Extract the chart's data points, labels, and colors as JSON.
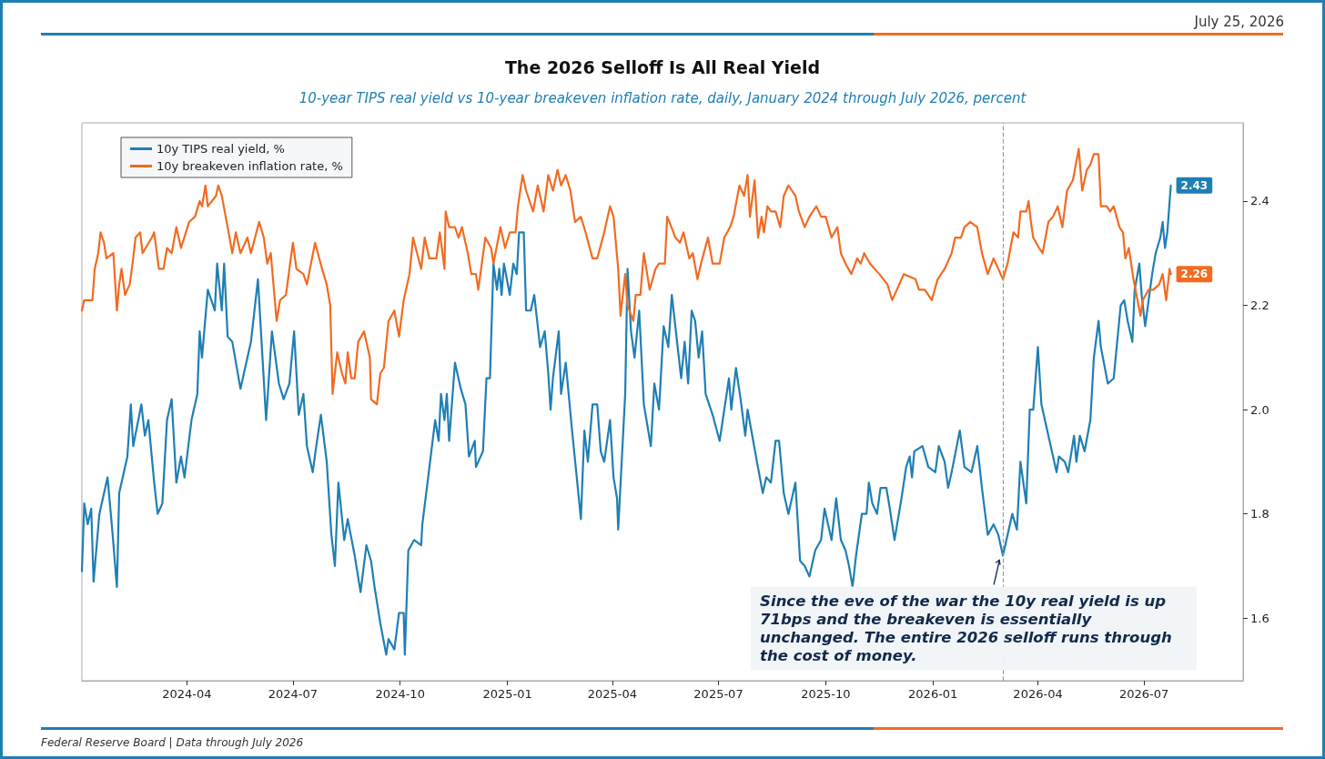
{
  "chart_data": {
    "type": "line",
    "title": "The 2026 Selloff Is All Real Yield",
    "subtitle": "10-year TIPS real yield vs 10-year breakeven inflation rate, daily, January 2024 through July 2026, percent",
    "series": [
      {
        "name": "10y TIPS real yield, %",
        "color": "#1f7fb4",
        "x": [
          "2024-01-02",
          "2024-01-04",
          "2024-01-07",
          "2024-01-10",
          "2024-01-12",
          "2024-01-17",
          "2024-01-24",
          "2024-01-28",
          "2024-02-01",
          "2024-02-03",
          "2024-02-10",
          "2024-02-13",
          "2024-02-15",
          "2024-02-22",
          "2024-02-25",
          "2024-02-28",
          "2024-03-04",
          "2024-03-07",
          "2024-03-11",
          "2024-03-15",
          "2024-03-19",
          "2024-03-23",
          "2024-03-27",
          "2024-03-30",
          "2024-04-05",
          "2024-04-10",
          "2024-04-12",
          "2024-04-14",
          "2024-04-19",
          "2024-04-25",
          "2024-04-27",
          "2024-05-01",
          "2024-05-03",
          "2024-05-06",
          "2024-05-10",
          "2024-05-17",
          "2024-05-23",
          "2024-05-26",
          "2024-06-01",
          "2024-06-08",
          "2024-06-13",
          "2024-06-19",
          "2024-06-23",
          "2024-06-28",
          "2024-07-02",
          "2024-07-06",
          "2024-07-10",
          "2024-07-13",
          "2024-07-18",
          "2024-07-21",
          "2024-07-25",
          "2024-07-30",
          "2024-08-03",
          "2024-08-06",
          "2024-08-09",
          "2024-08-14",
          "2024-08-17",
          "2024-08-23",
          "2024-08-28",
          "2024-09-02",
          "2024-09-06",
          "2024-09-09",
          "2024-09-14",
          "2024-09-19",
          "2024-09-21",
          "2024-09-26",
          "2024-09-30",
          "2024-10-04",
          "2024-10-05",
          "2024-10-08",
          "2024-10-13",
          "2024-10-19",
          "2024-10-20",
          "2024-10-25",
          "2024-10-31",
          "2024-11-03",
          "2024-11-05",
          "2024-11-08",
          "2024-11-10",
          "2024-11-12",
          "2024-11-17",
          "2024-11-22",
          "2024-11-26",
          "2024-11-29",
          "2024-12-04",
          "2024-12-05",
          "2024-12-11",
          "2024-12-14",
          "2024-12-17",
          "2024-12-20",
          "2024-12-23",
          "2024-12-25",
          "2024-12-27",
          "2024-12-29",
          "2025-01-03",
          "2025-01-06",
          "2025-01-09",
          "2025-01-11",
          "2025-01-15",
          "2025-01-17",
          "2025-01-21",
          "2025-01-24",
          "2025-01-29",
          "2025-02-02",
          "2025-02-05",
          "2025-02-07",
          "2025-02-09",
          "2025-02-14",
          "2025-02-16",
          "2025-02-20",
          "2025-02-25",
          "2025-03-01",
          "2025-03-05",
          "2025-03-08",
          "2025-03-11",
          "2025-03-15",
          "2025-03-19",
          "2025-03-22",
          "2025-03-25",
          "2025-03-30",
          "2025-04-02",
          "2025-04-05",
          "2025-04-06",
          "2025-04-12",
          "2025-04-14",
          "2025-04-17",
          "2025-04-20",
          "2025-04-24",
          "2025-04-28",
          "2025-05-04",
          "2025-05-07",
          "2025-05-11",
          "2025-05-15",
          "2025-05-19",
          "2025-05-22",
          "2025-05-26",
          "2025-05-30",
          "2025-06-02",
          "2025-06-05",
          "2025-06-08",
          "2025-06-11",
          "2025-06-14",
          "2025-06-17",
          "2025-06-20",
          "2025-06-26",
          "2025-07-02",
          "2025-07-10",
          "2025-07-12",
          "2025-07-16",
          "2025-07-20",
          "2025-07-24",
          "2025-07-26",
          "2025-07-30",
          "2025-08-03",
          "2025-08-08",
          "2025-08-11",
          "2025-08-15",
          "2025-08-19",
          "2025-08-22",
          "2025-08-26",
          "2025-08-30",
          "2025-09-05",
          "2025-09-09",
          "2025-09-13",
          "2025-09-17",
          "2025-09-22",
          "2025-09-27",
          "2025-09-30",
          "2025-10-03",
          "2025-10-06",
          "2025-10-10",
          "2025-10-14",
          "2025-10-18",
          "2025-10-21",
          "2025-10-24",
          "2025-10-27",
          "2025-11-01",
          "2025-11-05",
          "2025-11-07",
          "2025-11-10",
          "2025-11-14",
          "2025-11-17",
          "2025-11-22",
          "2025-11-25",
          "2025-11-29",
          "2025-12-05",
          "2025-12-09",
          "2025-12-12",
          "2025-12-14",
          "2025-12-16",
          "2025-12-23",
          "2025-12-28",
          "2026-01-03",
          "2026-01-06",
          "2026-01-11",
          "2026-01-14",
          "2026-01-17",
          "2026-01-24",
          "2026-01-28",
          "2026-02-03",
          "2026-02-08",
          "2026-02-12",
          "2026-02-17",
          "2026-02-22",
          "2026-02-26",
          "2026-03-02",
          "2026-03-10",
          "2026-03-14",
          "2026-03-17",
          "2026-03-22",
          "2026-03-25",
          "2026-03-28",
          "2026-04-01",
          "2026-04-04",
          "2026-04-07",
          "2026-04-11",
          "2026-04-17",
          "2026-04-19",
          "2026-04-24",
          "2026-04-27",
          "2026-05-02",
          "2026-05-04",
          "2026-05-07",
          "2026-05-11",
          "2026-05-16",
          "2026-05-19",
          "2026-05-23",
          "2026-05-25",
          "2026-05-31",
          "2026-06-05",
          "2026-06-08",
          "2026-06-11",
          "2026-06-14",
          "2026-06-17",
          "2026-06-21",
          "2026-06-23",
          "2026-06-27",
          "2026-06-29",
          "2026-07-02",
          "2026-07-08",
          "2026-07-11",
          "2026-07-15",
          "2026-07-17",
          "2026-07-19",
          "2026-07-21",
          "2026-07-24"
        ],
        "values": [
          1.69,
          1.82,
          1.78,
          1.81,
          1.67,
          1.8,
          1.87,
          1.77,
          1.66,
          1.84,
          1.91,
          2.01,
          1.93,
          2.01,
          1.95,
          1.98,
          1.86,
          1.8,
          1.82,
          1.98,
          2.02,
          1.86,
          1.91,
          1.87,
          1.98,
          2.03,
          2.15,
          2.1,
          2.23,
          2.19,
          2.28,
          2.19,
          2.28,
          2.14,
          2.13,
          2.04,
          2.1,
          2.13,
          2.25,
          1.98,
          2.15,
          2.05,
          2.02,
          2.05,
          2.15,
          1.99,
          2.03,
          1.93,
          1.88,
          1.93,
          1.99,
          1.9,
          1.76,
          1.7,
          1.86,
          1.75,
          1.79,
          1.72,
          1.65,
          1.74,
          1.71,
          1.66,
          1.59,
          1.53,
          1.56,
          1.54,
          1.61,
          1.61,
          1.53,
          1.73,
          1.75,
          1.74,
          1.78,
          1.87,
          1.98,
          1.94,
          2.03,
          1.98,
          2.03,
          1.94,
          2.09,
          2.04,
          2.01,
          1.91,
          1.94,
          1.89,
          1.92,
          2.06,
          2.06,
          2.28,
          2.23,
          2.27,
          2.22,
          2.28,
          2.22,
          2.28,
          2.26,
          2.34,
          2.34,
          2.19,
          2.19,
          2.22,
          2.12,
          2.15,
          2.07,
          2.0,
          2.06,
          2.15,
          2.03,
          2.09,
          1.97,
          1.88,
          1.79,
          1.96,
          1.9,
          2.01,
          2.01,
          1.92,
          1.9,
          1.98,
          1.87,
          1.83,
          1.77,
          2.03,
          2.27,
          2.15,
          2.1,
          2.19,
          2.01,
          1.93,
          2.05,
          2.0,
          2.16,
          2.12,
          2.22,
          2.14,
          2.06,
          2.13,
          2.05,
          2.19,
          2.17,
          2.1,
          2.15,
          2.03,
          1.99,
          1.94,
          2.06,
          2.0,
          2.08,
          2.02,
          1.95,
          2.0,
          1.95,
          1.9,
          1.84,
          1.87,
          1.86,
          1.94,
          1.94,
          1.84,
          1.8,
          1.86,
          1.71,
          1.7,
          1.68,
          1.73,
          1.75,
          1.81,
          1.78,
          1.75,
          1.83,
          1.75,
          1.73,
          1.7,
          1.66,
          1.72,
          1.8,
          1.8,
          1.86,
          1.82,
          1.8,
          1.85,
          1.85,
          1.81,
          1.75,
          1.83,
          1.89,
          1.91,
          1.87,
          1.92,
          1.93,
          1.89,
          1.88,
          1.93,
          1.9,
          1.85,
          1.88,
          1.96,
          1.89,
          1.88,
          1.93,
          1.85,
          1.76,
          1.78,
          1.76,
          1.72,
          1.8,
          1.77,
          1.9,
          1.82,
          2.0,
          2.0,
          2.12,
          2.01,
          1.98,
          1.94,
          1.88,
          1.91,
          1.9,
          1.88,
          1.95,
          1.9,
          1.95,
          1.92,
          1.98,
          2.1,
          2.17,
          2.12,
          2.05,
          2.06,
          2.13,
          2.2,
          2.21,
          2.17,
          2.13,
          2.23,
          2.28,
          2.22,
          2.16,
          2.26,
          2.3,
          2.33,
          2.36,
          2.31,
          2.34,
          2.43
        ]
      },
      {
        "name": "10y breakeven inflation rate, %",
        "color": "#f26b21",
        "x": [
          "2024-01-02",
          "2024-01-04",
          "2024-01-11",
          "2024-01-13",
          "2024-01-16",
          "2024-01-18",
          "2024-01-21",
          "2024-01-23",
          "2024-01-29",
          "2024-02-01",
          "2024-02-03",
          "2024-02-05",
          "2024-02-08",
          "2024-02-12",
          "2024-02-15",
          "2024-02-17",
          "2024-02-21",
          "2024-02-23",
          "2024-03-02",
          "2024-03-04",
          "2024-03-08",
          "2024-03-12",
          "2024-03-15",
          "2024-03-19",
          "2024-03-23",
          "2024-03-27",
          "2024-04-03",
          "2024-04-08",
          "2024-04-12",
          "2024-04-14",
          "2024-04-17",
          "2024-04-19",
          "2024-04-26",
          "2024-04-28",
          "2024-05-01",
          "2024-05-06",
          "2024-05-10",
          "2024-05-13",
          "2024-05-17",
          "2024-05-23",
          "2024-05-26",
          "2024-06-02",
          "2024-06-06",
          "2024-06-09",
          "2024-06-12",
          "2024-06-17",
          "2024-06-20",
          "2024-06-25",
          "2024-07-01",
          "2024-07-04",
          "2024-07-10",
          "2024-07-13",
          "2024-07-20",
          "2024-07-26",
          "2024-07-30",
          "2024-08-02",
          "2024-08-04",
          "2024-08-08",
          "2024-08-12",
          "2024-08-15",
          "2024-08-17",
          "2024-08-20",
          "2024-08-23",
          "2024-08-26",
          "2024-08-31",
          "2024-09-05",
          "2024-09-06",
          "2024-09-11",
          "2024-09-14",
          "2024-09-17",
          "2024-09-21",
          "2024-09-26",
          "2024-09-30",
          "2024-10-04",
          "2024-10-09",
          "2024-10-12",
          "2024-10-19",
          "2024-10-22",
          "2024-10-26",
          "2024-11-01",
          "2024-11-04",
          "2024-11-08",
          "2024-11-09",
          "2024-11-12",
          "2024-11-17",
          "2024-11-20",
          "2024-11-23",
          "2024-11-28",
          "2024-12-01",
          "2024-12-05",
          "2024-12-07",
          "2024-12-13",
          "2024-12-18",
          "2024-12-20",
          "2024-12-26",
          "2024-12-30",
          "2025-01-03",
          "2025-01-08",
          "2025-01-10",
          "2025-01-14",
          "2025-01-17",
          "2025-01-23",
          "2025-01-27",
          "2025-01-30",
          "2025-02-01",
          "2025-02-05",
          "2025-02-09",
          "2025-02-13",
          "2025-02-16",
          "2025-02-20",
          "2025-02-24",
          "2025-02-28",
          "2025-03-05",
          "2025-03-09",
          "2025-03-15",
          "2025-03-19",
          "2025-03-25",
          "2025-03-30",
          "2025-04-02",
          "2025-04-06",
          "2025-04-08",
          "2025-04-12",
          "2025-04-14",
          "2025-04-19",
          "2025-04-21",
          "2025-04-25",
          "2025-04-28",
          "2025-05-03",
          "2025-05-08",
          "2025-05-11",
          "2025-05-16",
          "2025-05-18",
          "2025-05-20",
          "2025-05-25",
          "2025-05-29",
          "2025-06-01",
          "2025-06-06",
          "2025-06-09",
          "2025-06-13",
          "2025-06-16",
          "2025-06-22",
          "2025-06-26",
          "2025-07-02",
          "2025-07-06",
          "2025-07-11",
          "2025-07-14",
          "2025-07-19",
          "2025-07-23",
          "2025-07-26",
          "2025-07-28",
          "2025-08-01",
          "2025-08-04",
          "2025-08-07",
          "2025-08-09",
          "2025-08-12",
          "2025-08-15",
          "2025-08-19",
          "2025-08-23",
          "2025-08-26",
          "2025-08-30",
          "2025-09-05",
          "2025-09-08",
          "2025-09-13",
          "2025-09-17",
          "2025-09-23",
          "2025-09-27",
          "2025-10-01",
          "2025-10-06",
          "2025-10-11",
          "2025-10-14",
          "2025-10-18",
          "2025-10-23",
          "2025-10-28",
          "2025-10-31",
          "2025-11-03",
          "2025-11-08",
          "2025-11-16",
          "2025-11-23",
          "2025-11-27",
          "2025-12-01",
          "2025-12-07",
          "2025-12-17",
          "2025-12-20",
          "2025-12-25",
          "2025-12-31",
          "2026-01-05",
          "2026-01-11",
          "2026-01-17",
          "2026-01-20",
          "2026-01-25",
          "2026-01-28",
          "2026-02-02",
          "2026-02-08",
          "2026-02-12",
          "2026-02-17",
          "2026-02-22",
          "2026-02-26",
          "2026-03-02",
          "2026-03-06",
          "2026-03-11",
          "2026-03-15",
          "2026-03-17",
          "2026-03-22",
          "2026-03-24",
          "2026-03-26",
          "2026-03-28",
          "2026-04-02",
          "2026-04-05",
          "2026-04-10",
          "2026-04-14",
          "2026-04-18",
          "2026-04-22",
          "2026-04-26",
          "2026-05-01",
          "2026-05-06",
          "2026-05-09",
          "2026-05-13",
          "2026-05-16",
          "2026-05-19",
          "2026-05-23",
          "2026-05-25",
          "2026-05-30",
          "2026-06-02",
          "2026-06-05",
          "2026-06-10",
          "2026-06-13",
          "2026-06-15",
          "2026-06-18",
          "2026-06-22",
          "2026-06-28",
          "2026-06-30",
          "2026-07-05",
          "2026-07-09",
          "2026-07-14",
          "2026-07-17",
          "2026-07-20",
          "2026-07-23",
          "2026-07-24"
        ],
        "values": [
          2.19,
          2.21,
          2.21,
          2.27,
          2.3,
          2.34,
          2.32,
          2.29,
          2.3,
          2.19,
          2.24,
          2.27,
          2.22,
          2.24,
          2.29,
          2.33,
          2.34,
          2.3,
          2.33,
          2.34,
          2.27,
          2.27,
          2.31,
          2.3,
          2.35,
          2.31,
          2.36,
          2.37,
          2.4,
          2.39,
          2.43,
          2.39,
          2.41,
          2.43,
          2.41,
          2.35,
          2.3,
          2.34,
          2.3,
          2.33,
          2.3,
          2.36,
          2.33,
          2.28,
          2.3,
          2.17,
          2.21,
          2.22,
          2.32,
          2.27,
          2.26,
          2.24,
          2.32,
          2.27,
          2.24,
          2.2,
          2.03,
          2.11,
          2.07,
          2.05,
          2.11,
          2.06,
          2.06,
          2.13,
          2.15,
          2.1,
          2.02,
          2.01,
          2.07,
          2.08,
          2.17,
          2.19,
          2.14,
          2.21,
          2.26,
          2.33,
          2.27,
          2.33,
          2.29,
          2.29,
          2.34,
          2.27,
          2.38,
          2.35,
          2.35,
          2.33,
          2.35,
          2.3,
          2.26,
          2.26,
          2.23,
          2.33,
          2.31,
          2.28,
          2.35,
          2.31,
          2.34,
          2.34,
          2.39,
          2.45,
          2.42,
          2.38,
          2.43,
          2.4,
          2.38,
          2.45,
          2.42,
          2.46,
          2.43,
          2.45,
          2.42,
          2.36,
          2.37,
          2.34,
          2.29,
          2.29,
          2.34,
          2.39,
          2.37,
          2.27,
          2.18,
          2.26,
          2.2,
          2.17,
          2.22,
          2.22,
          2.3,
          2.23,
          2.27,
          2.28,
          2.28,
          2.37,
          2.36,
          2.33,
          2.32,
          2.34,
          2.29,
          2.3,
          2.25,
          2.28,
          2.33,
          2.28,
          2.28,
          2.33,
          2.35,
          2.37,
          2.43,
          2.41,
          2.45,
          2.37,
          2.44,
          2.33,
          2.37,
          2.34,
          2.39,
          2.38,
          2.38,
          2.35,
          2.41,
          2.43,
          2.41,
          2.38,
          2.35,
          2.37,
          2.39,
          2.37,
          2.37,
          2.33,
          2.35,
          2.3,
          2.28,
          2.26,
          2.29,
          2.28,
          2.3,
          2.28,
          2.26,
          2.24,
          2.21,
          2.23,
          2.26,
          2.25,
          2.23,
          2.23,
          2.21,
          2.25,
          2.27,
          2.3,
          2.33,
          2.33,
          2.35,
          2.36,
          2.35,
          2.3,
          2.26,
          2.29,
          2.27,
          2.25,
          2.28,
          2.34,
          2.33,
          2.38,
          2.38,
          2.4,
          2.36,
          2.33,
          2.31,
          2.3,
          2.36,
          2.37,
          2.39,
          2.35,
          2.42,
          2.44,
          2.5,
          2.42,
          2.46,
          2.47,
          2.49,
          2.49,
          2.39,
          2.39,
          2.38,
          2.39,
          2.35,
          2.34,
          2.29,
          2.31,
          2.25,
          2.18,
          2.21,
          2.23,
          2.23,
          2.24,
          2.26,
          2.21,
          2.27,
          2.26
        ]
      }
    ],
    "xlim": [
      "2024-01-02",
      "2026-09-24"
    ],
    "xticks": [
      {
        "value": "2024-04-01",
        "label": "2024-04"
      },
      {
        "value": "2024-07-01",
        "label": "2024-07"
      },
      {
        "value": "2024-10-01",
        "label": "2024-10"
      },
      {
        "value": "2025-01-01",
        "label": "2025-01"
      },
      {
        "value": "2025-04-01",
        "label": "2025-04"
      },
      {
        "value": "2025-07-01",
        "label": "2025-07"
      },
      {
        "value": "2025-10-01",
        "label": "2025-10"
      },
      {
        "value": "2026-01-01",
        "label": "2026-01"
      },
      {
        "value": "2026-04-01",
        "label": "2026-04"
      },
      {
        "value": "2026-07-01",
        "label": "2026-07"
      }
    ],
    "ylim": [
      1.48,
      2.55
    ],
    "yticks": [
      1.6,
      1.8,
      {
        "value": 2,
        "label": "2.0"
      },
      2.2,
      2.4
    ],
    "ref_lines": [
      {
        "axis": "x",
        "value": "2026-03-02",
        "color": "#999999",
        "line_style": "dashed"
      }
    ],
    "annotations": [
      "July 25, 2026",
      "Federal Reserve Board | Data through July 2026",
      {
        "text": "Since the eve of the war the 10y real yield is up 71bps and the breakeven is essentially unchanged. The entire 2026 selloff runs through the cost of money.",
        "x": "2026-03-02",
        "y": 1.72
      },
      {
        "text": "2.43",
        "x": "2026-07-24",
        "y": 2.43
      },
      {
        "text": "2.26",
        "x": "2026-07-24",
        "y": 2.26
      }
    ],
    "legend": "top left",
    "grid": false,
    "marker": "none",
    "line_style": "solid"
  }
}
